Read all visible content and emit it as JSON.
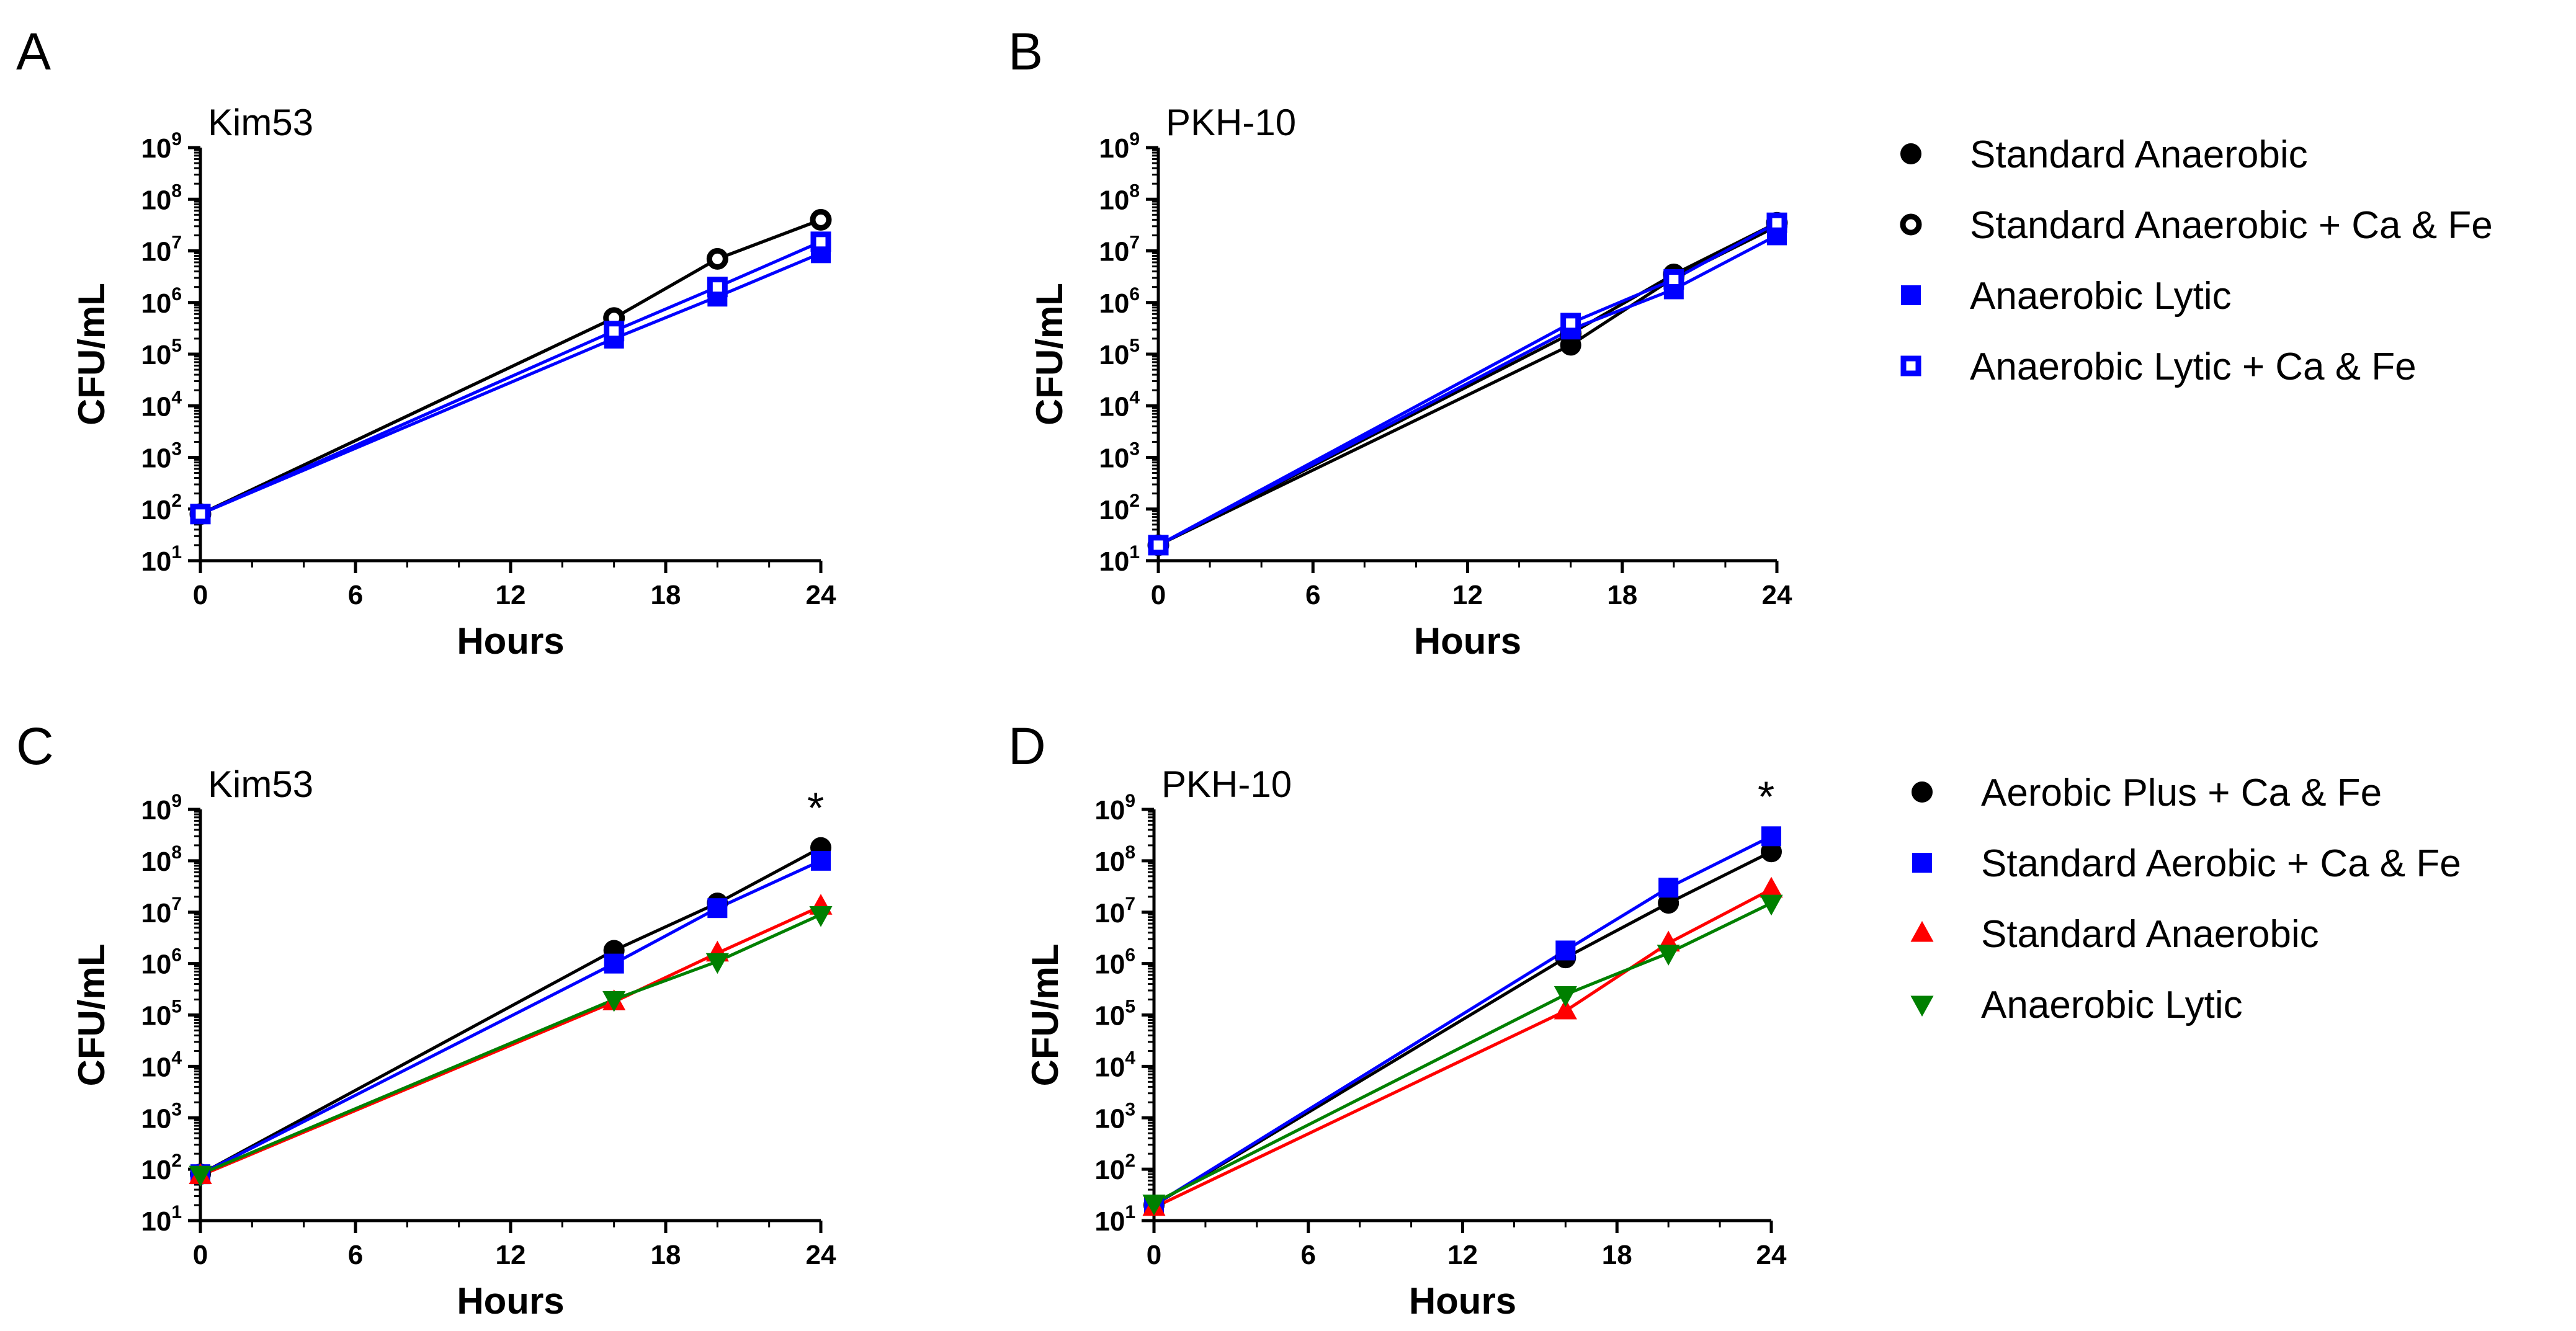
{
  "chart_data": [
    {
      "panel": "A",
      "type": "line",
      "title": "Kim53",
      "xlabel": "Hours",
      "ylabel": "CFU/mL",
      "xlim": [
        0,
        24
      ],
      "ylim": [
        10,
        1000000000
      ],
      "yscale": "log",
      "xticks": [
        "0",
        "6",
        "12",
        "18",
        "24"
      ],
      "yticks": [
        {
          "base": "10",
          "exp": "1"
        },
        {
          "base": "10",
          "exp": "2"
        },
        {
          "base": "10",
          "exp": "3"
        },
        {
          "base": "10",
          "exp": "4"
        },
        {
          "base": "10",
          "exp": "5"
        },
        {
          "base": "10",
          "exp": "6"
        },
        {
          "base": "10",
          "exp": "7"
        },
        {
          "base": "10",
          "exp": "8"
        },
        {
          "base": "10",
          "exp": "9"
        }
      ],
      "x": [
        0,
        16,
        20,
        24
      ],
      "annotation": "",
      "series": [
        {
          "name": "Standard Anaerobic",
          "color": "#000000",
          "marker": "circle",
          "filled": true,
          "values": [
            80,
            500000,
            7000000,
            40000000
          ]
        },
        {
          "name": "Standard Anaerobic + Ca & Fe",
          "color": "#000000",
          "marker": "circle",
          "filled": false,
          "values": [
            80,
            500000,
            7000000,
            40000000
          ]
        },
        {
          "name": "Anaerobic Lytic",
          "color": "#0000ff",
          "marker": "square",
          "filled": true,
          "values": [
            80,
            200000,
            1300000,
            9000000
          ]
        },
        {
          "name": "Anaerobic Lytic + Ca & Fe",
          "color": "#0000ff",
          "marker": "square",
          "filled": false,
          "values": [
            80,
            280000,
            2000000,
            15000000
          ]
        }
      ]
    },
    {
      "panel": "B",
      "type": "line",
      "title": "PKH-10",
      "xlabel": "Hours",
      "ylabel": "CFU/mL",
      "xlim": [
        0,
        24
      ],
      "ylim": [
        10,
        1000000000
      ],
      "yscale": "log",
      "xticks": [
        "0",
        "6",
        "12",
        "18",
        "24"
      ],
      "yticks": [
        {
          "base": "10",
          "exp": "1"
        },
        {
          "base": "10",
          "exp": "2"
        },
        {
          "base": "10",
          "exp": "3"
        },
        {
          "base": "10",
          "exp": "4"
        },
        {
          "base": "10",
          "exp": "5"
        },
        {
          "base": "10",
          "exp": "6"
        },
        {
          "base": "10",
          "exp": "7"
        },
        {
          "base": "10",
          "exp": "8"
        },
        {
          "base": "10",
          "exp": "9"
        }
      ],
      "x": [
        0,
        16,
        20,
        24
      ],
      "annotation": "",
      "series": [
        {
          "name": "Standard Anaerobic",
          "color": "#000000",
          "marker": "circle",
          "filled": true,
          "values": [
            20,
            150000,
            3000000,
            30000000
          ]
        },
        {
          "name": "Standard Anaerobic + Ca & Fe",
          "color": "#000000",
          "marker": "circle",
          "filled": false,
          "values": [
            20,
            250000,
            3500000,
            35000000
          ]
        },
        {
          "name": "Anaerobic Lytic",
          "color": "#0000ff",
          "marker": "square",
          "filled": true,
          "values": [
            20,
            300000,
            1800000,
            20000000
          ]
        },
        {
          "name": "Anaerobic Lytic + Ca & Fe",
          "color": "#0000ff",
          "marker": "square",
          "filled": false,
          "values": [
            20,
            400000,
            2800000,
            35000000
          ]
        }
      ]
    },
    {
      "panel": "C",
      "type": "line",
      "title": "Kim53",
      "xlabel": "Hours",
      "ylabel": "CFU/mL",
      "xlim": [
        0,
        24
      ],
      "ylim": [
        10,
        1000000000
      ],
      "yscale": "log",
      "xticks": [
        "0",
        "6",
        "12",
        "18",
        "24"
      ],
      "yticks": [
        {
          "base": "10",
          "exp": "1"
        },
        {
          "base": "10",
          "exp": "2"
        },
        {
          "base": "10",
          "exp": "3"
        },
        {
          "base": "10",
          "exp": "4"
        },
        {
          "base": "10",
          "exp": "5"
        },
        {
          "base": "10",
          "exp": "6"
        },
        {
          "base": "10",
          "exp": "7"
        },
        {
          "base": "10",
          "exp": "8"
        },
        {
          "base": "10",
          "exp": "9"
        }
      ],
      "x": [
        0,
        16,
        20,
        24
      ],
      "annotation": "*",
      "series": [
        {
          "name": "Aerobic Plus + Ca & Fe",
          "color": "#000000",
          "marker": "circle",
          "filled": true,
          "values": [
            80,
            1800000,
            15000000,
            180000000
          ]
        },
        {
          "name": "Standard Aerobic + Ca & Fe",
          "color": "#0000ff",
          "marker": "square",
          "filled": true,
          "values": [
            80,
            1000000,
            12000000,
            100000000
          ]
        },
        {
          "name": "Standard Anaerobic",
          "color": "#ff0000",
          "marker": "triangle-up",
          "filled": true,
          "values": [
            75,
            180000,
            1600000,
            13000000
          ]
        },
        {
          "name": "Anaerobic Lytic",
          "color": "#008000",
          "marker": "triangle-down",
          "filled": true,
          "values": [
            80,
            200000,
            1100000,
            9000000
          ]
        }
      ]
    },
    {
      "panel": "D",
      "type": "line",
      "title": "PKH-10",
      "xlabel": "Hours",
      "ylabel": "CFU/mL",
      "xlim": [
        0,
        24
      ],
      "ylim": [
        10,
        1000000000
      ],
      "yscale": "log",
      "xticks": [
        "0",
        "6",
        "12",
        "18",
        "24"
      ],
      "yticks": [
        {
          "base": "10",
          "exp": "1"
        },
        {
          "base": "10",
          "exp": "2"
        },
        {
          "base": "10",
          "exp": "3"
        },
        {
          "base": "10",
          "exp": "4"
        },
        {
          "base": "10",
          "exp": "5"
        },
        {
          "base": "10",
          "exp": "6"
        },
        {
          "base": "10",
          "exp": "7"
        },
        {
          "base": "10",
          "exp": "8"
        },
        {
          "base": "10",
          "exp": "9"
        }
      ],
      "x": [
        0,
        16,
        20,
        24
      ],
      "annotation": "*",
      "series": [
        {
          "name": "Aerobic Plus + Ca & Fe",
          "color": "#000000",
          "marker": "circle",
          "filled": true,
          "values": [
            20,
            1300000,
            15000000,
            150000000
          ]
        },
        {
          "name": "Standard Aerobic + Ca & Fe",
          "color": "#0000ff",
          "marker": "square",
          "filled": true,
          "values": [
            20,
            1800000,
            30000000,
            300000000
          ]
        },
        {
          "name": "Standard Anaerobic",
          "color": "#ff0000",
          "marker": "triangle-up",
          "filled": true,
          "values": [
            18,
            120000,
            2500000,
            28000000
          ]
        },
        {
          "name": "Anaerobic Lytic",
          "color": "#008000",
          "marker": "triangle-down",
          "filled": true,
          "values": [
            22,
            250000,
            1600000,
            15000000
          ]
        }
      ]
    }
  ],
  "legends": [
    {
      "id": "legend-top",
      "placement": "right of panels A-B",
      "entries": [
        {
          "label": "Standard Anaerobic",
          "color": "#000000",
          "marker": "circle",
          "filled": true
        },
        {
          "label": "Standard Anaerobic + Ca & Fe",
          "color": "#000000",
          "marker": "circle",
          "filled": false
        },
        {
          "label": "Anaerobic Lytic",
          "color": "#0000ff",
          "marker": "square",
          "filled": true
        },
        {
          "label": "Anaerobic Lytic + Ca & Fe",
          "color": "#0000ff",
          "marker": "square",
          "filled": false
        }
      ]
    },
    {
      "id": "legend-bottom",
      "placement": "right of panels C-D",
      "entries": [
        {
          "label": "Aerobic Plus + Ca & Fe",
          "color": "#000000",
          "marker": "circle",
          "filled": true
        },
        {
          "label": "Standard Aerobic + Ca & Fe",
          "color": "#0000ff",
          "marker": "square",
          "filled": true
        },
        {
          "label": "Standard Anaerobic",
          "color": "#ff0000",
          "marker": "triangle-up",
          "filled": true
        },
        {
          "label": "Anaerobic Lytic",
          "color": "#008000",
          "marker": "triangle-down",
          "filled": true
        }
      ]
    }
  ]
}
